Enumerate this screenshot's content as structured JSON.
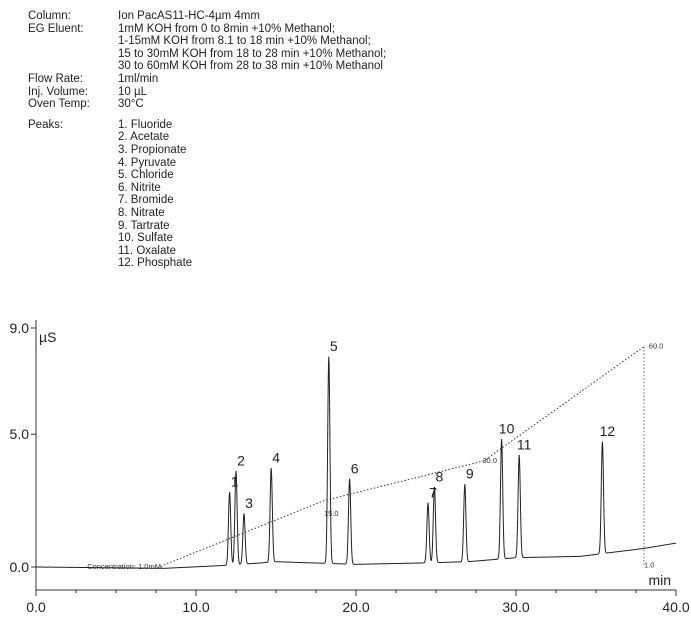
{
  "conditions": [
    {
      "label": "Column:",
      "lines": [
        "Ion PacAS11-HC-4µm 4mm"
      ]
    },
    {
      "label": "EG Eluent:",
      "lines": [
        "1mM KOH from 0 to 8min +10% Methanol;",
        "1-15mM KOH from 8.1 to 18 min +10% Methanol;",
        "15 to 30mM KOH from 18 to 28 min +10% Methanol;",
        "30 to 60mM KOH from 28 to 38 min +10% Methanol"
      ]
    },
    {
      "label": "Flow Rate:",
      "lines": [
        "1ml/min"
      ]
    },
    {
      "label": "Inj. Volume:",
      "lines": [
        "10 µL"
      ]
    },
    {
      "label": "Oven Temp:",
      "lines": [
        "30°C"
      ]
    }
  ],
  "peaks_label": "Peaks:",
  "peaks_list": [
    "1. Fluoride",
    "2. Acetate",
    "3. Propionate",
    "4. Pyruvate",
    "5. Chloride",
    "6. Nitrite",
    "7. Bromide",
    "8. Nitrate",
    "9. Tartrate",
    "10. Sulfate",
    "11. Oxalate",
    "12. Phosphate"
  ],
  "chart_data": {
    "type": "line",
    "xlim": [
      0,
      40
    ],
    "ylim": [
      -0.5,
      9.0
    ],
    "x_ticks": [
      0,
      10,
      20,
      30,
      40
    ],
    "x_tick_labels": [
      "0.0",
      "10.0",
      "20.0",
      "30.0",
      "40.0"
    ],
    "y_ticks": [
      0,
      5,
      9
    ],
    "y_tick_labels": [
      "0.0",
      "5.0",
      "9.0"
    ],
    "y_unit": "µS",
    "x_unit": "min",
    "peaks": [
      {
        "label": "1",
        "x": 12.1,
        "y": 2.8
      },
      {
        "label": "2",
        "x": 12.5,
        "y": 3.6
      },
      {
        "label": "3",
        "x": 13.0,
        "y": 2.0
      },
      {
        "label": "4",
        "x": 14.7,
        "y": 3.7
      },
      {
        "label": "5",
        "x": 18.3,
        "y": 7.9
      },
      {
        "label": "6",
        "x": 19.6,
        "y": 3.3
      },
      {
        "label": "7",
        "x": 24.5,
        "y": 2.4
      },
      {
        "label": "8",
        "x": 24.9,
        "y": 3.0
      },
      {
        "label": "9",
        "x": 26.8,
        "y": 3.1
      },
      {
        "label": "10",
        "x": 29.1,
        "y": 4.8
      },
      {
        "label": "11",
        "x": 30.2,
        "y": 4.2
      },
      {
        "label": "12",
        "x": 35.4,
        "y": 4.7
      }
    ],
    "baseline": [
      [
        0,
        0.0
      ],
      [
        8,
        -0.05
      ],
      [
        11.5,
        0.05
      ],
      [
        14,
        0.15
      ],
      [
        15,
        0.2
      ],
      [
        20,
        0.1
      ],
      [
        24,
        0.15
      ],
      [
        27,
        0.2
      ],
      [
        30,
        0.35
      ],
      [
        34,
        0.4
      ],
      [
        38,
        0.7
      ],
      [
        40,
        0.9
      ]
    ],
    "gradient": [
      [
        7.8,
        0.0
      ],
      [
        8.1,
        0.1
      ],
      [
        18,
        2.5
      ],
      [
        28,
        4.0
      ],
      [
        38,
        8.3
      ]
    ],
    "gradient_labels": [
      {
        "text": "Concentration: 1.0mM",
        "x": 3.2,
        "y": 0.0
      },
      {
        "text": "15.0",
        "x": 18.0,
        "y": 2.0
      },
      {
        "text": "30.0",
        "x": 27.9,
        "y": 4.0
      },
      {
        "text": "60.0",
        "x": 38.3,
        "y": 8.3
      },
      {
        "text": "1.0",
        "x": 38.0,
        "y": 0.05
      }
    ],
    "end_line_x": 38.0
  }
}
